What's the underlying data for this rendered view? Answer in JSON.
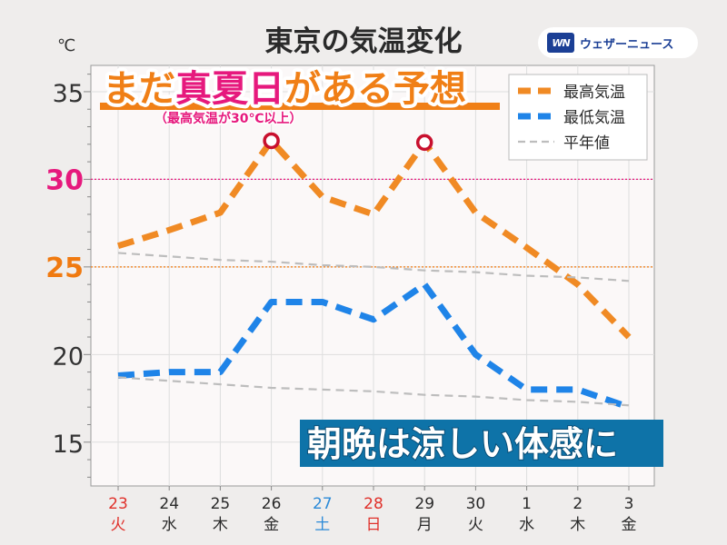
{
  "header": {
    "title": "東京の気温変化",
    "unit": "℃",
    "brand_mark": "WN",
    "brand_name": "ウェザーニュース"
  },
  "headline": {
    "pre": "まだ",
    "highlight": "真夏日",
    "post": "がある予想",
    "sub": "（最高気温が30℃以上）"
  },
  "footer_banner": "朝晩は涼しい体感に",
  "colors": {
    "high": "#f08a24",
    "low": "#1f84e8",
    "normal": "#bdbdbd",
    "accent_pink": "#e6197d",
    "accent_orange": "#f07a10",
    "banner_bg": "#0e73a8",
    "headline_bg": "#f07f16",
    "marker": "#c8102e",
    "plot_bg": "#fbf8f8",
    "saturday": "#2b8ad8",
    "holiday": "#e0302a"
  },
  "chart_data": {
    "type": "line",
    "title": "東京の気温変化",
    "ylabel": "℃",
    "ylim": [
      12.5,
      36.5
    ],
    "y_ticks": [
      15,
      20,
      25,
      30,
      35
    ],
    "categories": [
      "23",
      "24",
      "25",
      "26",
      "27",
      "28",
      "29",
      "30",
      "1",
      "2",
      "3"
    ],
    "weekdays": [
      "火",
      "水",
      "木",
      "金",
      "土",
      "日",
      "月",
      "火",
      "水",
      "木",
      "金"
    ],
    "day_types": [
      "holiday",
      "weekday",
      "weekday",
      "weekday",
      "saturday",
      "holiday",
      "weekday",
      "weekday",
      "weekday",
      "weekday",
      "weekday"
    ],
    "series": [
      {
        "name": "最高気温",
        "values": [
          26.2,
          27.1,
          28.1,
          32.2,
          29.0,
          28.0,
          32.1,
          28.1,
          26.1,
          24.0,
          21.0
        ],
        "style": "dashed-thick"
      },
      {
        "name": "最低気温",
        "values": [
          18.8,
          19.0,
          19.0,
          23.0,
          23.0,
          22.0,
          24.0,
          20.0,
          18.0,
          18.0,
          17.0
        ],
        "style": "dashed-thick"
      },
      {
        "name": "平年値",
        "values": [
          25.8,
          25.6,
          25.4,
          25.3,
          25.1,
          25.0,
          24.8,
          24.7,
          24.5,
          24.4,
          24.2
        ],
        "style": "dashed-thin"
      },
      {
        "name": "平年値",
        "values": [
          18.7,
          18.5,
          18.3,
          18.1,
          18.0,
          17.9,
          17.7,
          17.6,
          17.4,
          17.3,
          17.1
        ],
        "style": "dashed-thin",
        "legend": false
      }
    ],
    "reference_lines": [
      {
        "value": 30,
        "label": "30",
        "color": "#e6197d"
      },
      {
        "value": 25,
        "label": "25",
        "color": "#f07a10"
      }
    ],
    "markers": {
      "series": "最高気温",
      "indices": [
        3,
        6
      ]
    },
    "legend": "top-right",
    "grid": true
  }
}
